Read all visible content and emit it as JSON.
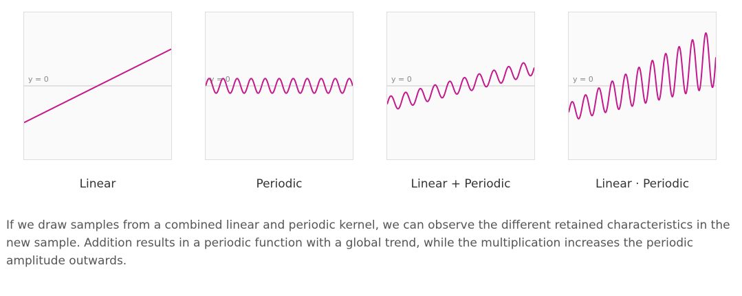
{
  "colors": {
    "curve": "#c2198d",
    "zero_line": "#c8c8c8",
    "panel_bg": "#fafafa",
    "panel_border": "#dddddd"
  },
  "zero_label": "y = 0",
  "chart_data": [
    {
      "type": "line",
      "caption": "Linear",
      "xlim": [
        0,
        1
      ],
      "ylim": [
        -1,
        1
      ],
      "series": [
        {
          "x": [
            0,
            1
          ],
          "y": [
            -0.5,
            0.5
          ]
        }
      ]
    },
    {
      "type": "line",
      "caption": "Periodic",
      "xlim": [
        0,
        1
      ],
      "ylim": [
        -1,
        1
      ],
      "formula": {
        "slope": 0,
        "intercept": 0,
        "amplitude": 0.1,
        "amplitude_growth": 0,
        "cycles": 10.5
      }
    },
    {
      "type": "line",
      "caption": "Linear + Periodic",
      "xlim": [
        0,
        1
      ],
      "ylim": [
        -1,
        1
      ],
      "formula": {
        "slope": 0.5,
        "intercept": -0.25,
        "amplitude": 0.1,
        "amplitude_growth": 0,
        "cycles": 10
      }
    },
    {
      "type": "line",
      "caption": "Linear · Periodic",
      "xlim": [
        0,
        1
      ],
      "ylim": [
        -1,
        1
      ],
      "formula": {
        "slope": 0.75,
        "intercept": -0.36,
        "amplitude": 0.12,
        "amplitude_growth": 0.28,
        "cycles": 11
      }
    }
  ],
  "description": "If we draw samples from a combined linear and periodic kernel, we can observe the different retained characteristics in the new sample. Addition results in a periodic function with a global trend, while the multiplication increases the periodic amplitude outwards."
}
